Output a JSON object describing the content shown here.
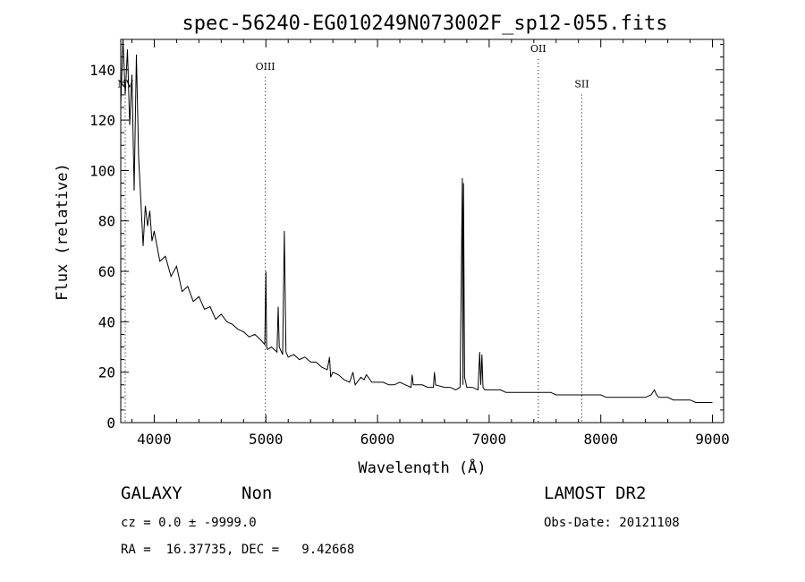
{
  "chart_data": {
    "type": "line",
    "title": "spec-56240-EG010249N073002F_sp12-055.fits",
    "xlabel": "Wavelength (Å)",
    "ylabel": "Flux (relative)",
    "xlim": [
      3700,
      9100
    ],
    "ylim": [
      0,
      152
    ],
    "xticks": [
      4000,
      5000,
      6000,
      7000,
      8000,
      9000
    ],
    "yticks": [
      0,
      20,
      40,
      60,
      80,
      100,
      120,
      140
    ],
    "grid": false,
    "line_color": "#000000",
    "series": [
      {
        "x": [
          3700,
          3720,
          3740,
          3760,
          3780,
          3800,
          3820,
          3840,
          3860,
          3880,
          3900,
          3920,
          3940,
          3960,
          3980,
          4000,
          4050,
          4100,
          4150,
          4200,
          4250,
          4300,
          4350,
          4400,
          4450,
          4500,
          4550,
          4600,
          4650,
          4700,
          4750,
          4800,
          4850,
          4900,
          4950,
          4990,
          5000,
          5007,
          5015,
          5050,
          5100,
          5110,
          5120,
          5150,
          5165,
          5180,
          5200,
          5250,
          5300,
          5350,
          5400,
          5450,
          5500,
          5550,
          5570,
          5580,
          5600,
          5650,
          5700,
          5750,
          5780,
          5800,
          5850,
          5880,
          5900,
          5950,
          6000,
          6050,
          6100,
          6150,
          6200,
          6250,
          6300,
          6310,
          6320,
          6400,
          6450,
          6500,
          6510,
          6520,
          6600,
          6650,
          6700,
          6740,
          6760,
          6765,
          6770,
          6780,
          6800,
          6850,
          6900,
          6915,
          6925,
          6935,
          6945,
          6960,
          7000,
          7050,
          7100,
          7150,
          7200,
          7250,
          7300,
          7350,
          7400,
          7450,
          7500,
          7550,
          7600,
          7650,
          7700,
          7750,
          7800,
          7850,
          7900,
          7950,
          8000,
          8050,
          8100,
          8150,
          8200,
          8250,
          8300,
          8350,
          8400,
          8450,
          8480,
          8500,
          8520,
          8550,
          8600,
          8650,
          8700,
          8750,
          8800,
          8850,
          8900,
          8950,
          9000
        ],
        "y": [
          126,
          152,
          130,
          148,
          118,
          138,
          92,
          146,
          105,
          88,
          70,
          86,
          78,
          84,
          72,
          76,
          64,
          66,
          58,
          62,
          52,
          54,
          48,
          50,
          45,
          46,
          41,
          43,
          40,
          39,
          37,
          36,
          34,
          35,
          33,
          31,
          60,
          30,
          29,
          30,
          28,
          46,
          30,
          27,
          76,
          28,
          26,
          27,
          25,
          26,
          24,
          24,
          22,
          21,
          26,
          18,
          20,
          19,
          17,
          16,
          20,
          15,
          18,
          17,
          19,
          16,
          16,
          16,
          15,
          15,
          16,
          15,
          14,
          19,
          15,
          15,
          14,
          14,
          20,
          15,
          14,
          14,
          13,
          14,
          97,
          15,
          95,
          18,
          14,
          14,
          13,
          28,
          15,
          27,
          14,
          13,
          13,
          13,
          13,
          12,
          12,
          12,
          12,
          12,
          12,
          12,
          12,
          12,
          11,
          11,
          11,
          11,
          11,
          11,
          11,
          11,
          11,
          10,
          10,
          10,
          10,
          10,
          10,
          10,
          10,
          11,
          13,
          11,
          10,
          10,
          10,
          9,
          9,
          9,
          9,
          8,
          8,
          8,
          8
        ]
      }
    ],
    "line_markers": [
      {
        "label": "NV",
        "x": 3740,
        "label_y": 133
      },
      {
        "label": "OIII",
        "x": 4995,
        "label_y": 140
      },
      {
        "label": "OII",
        "x": 7440,
        "label_y": 147
      },
      {
        "label": "SII",
        "x": 7830,
        "label_y": 133
      }
    ]
  },
  "info": {
    "object_class": "GALAXY",
    "subclass": "Non",
    "redshift": "cz = 0.0 ± -9999.0",
    "coords": "RA =  16.37735, DEC =   9.42668",
    "survey": "LAMOST DR2",
    "obs_date": "Obs-Date: 20121108"
  }
}
